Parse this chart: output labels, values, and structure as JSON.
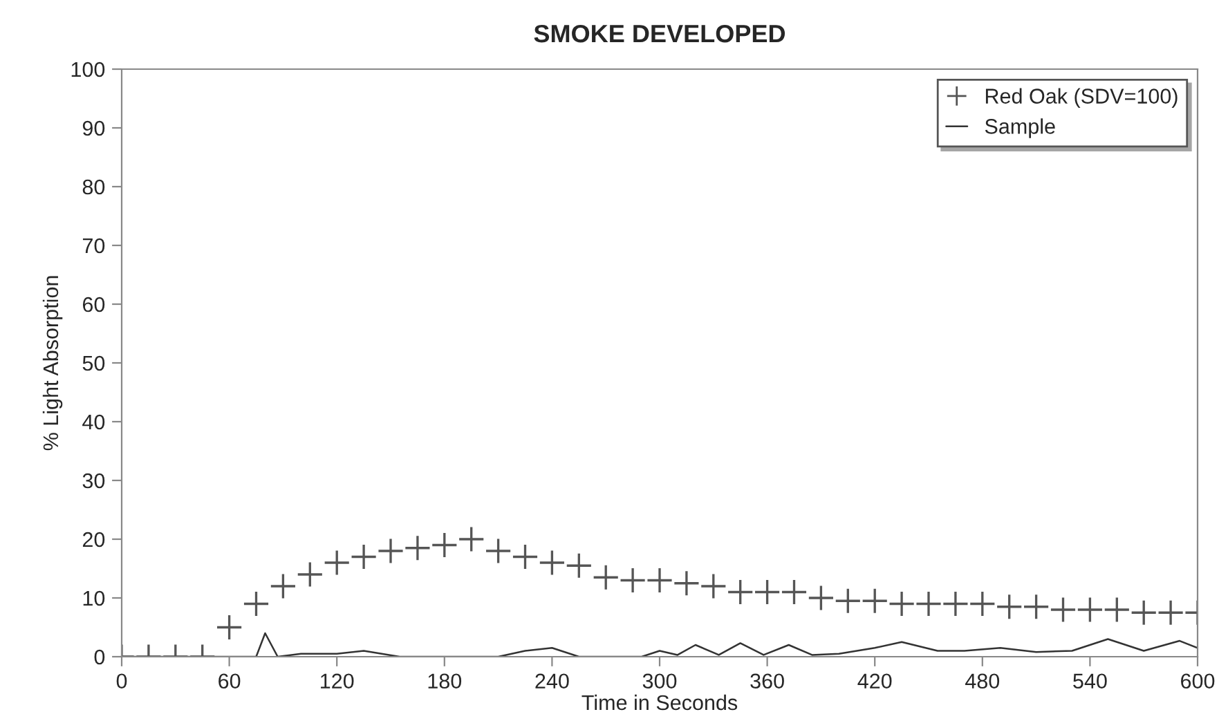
{
  "chart_data": {
    "type": "line",
    "title": "SMOKE DEVELOPED",
    "xlabel": "Time in Seconds",
    "ylabel": "% Light Absorption",
    "xlim": [
      0,
      600
    ],
    "xticks": [
      0,
      60,
      120,
      180,
      240,
      300,
      360,
      420,
      480,
      540,
      600
    ],
    "ylim": [
      0,
      100
    ],
    "yticks": [
      0,
      10,
      20,
      30,
      40,
      50,
      60,
      70,
      80,
      90,
      100
    ],
    "grid": false,
    "legend": "top right",
    "series": [
      {
        "name": "Red Oak (SDV=100)",
        "color": "#555555",
        "type": "scatter",
        "marker": "cross",
        "x": [
          0,
          15,
          30,
          45,
          60,
          75,
          90,
          105,
          120,
          135,
          150,
          165,
          180,
          195,
          210,
          225,
          240,
          255,
          270,
          285,
          300,
          315,
          330,
          345,
          360,
          375,
          390,
          405,
          420,
          435,
          450,
          465,
          480,
          495,
          510,
          525,
          540,
          555,
          570,
          585,
          600
        ],
        "values": [
          0,
          0,
          0,
          0,
          5,
          9,
          12,
          14,
          16,
          17,
          18,
          18.5,
          19,
          20,
          18,
          17,
          16,
          15.5,
          13.5,
          13,
          13,
          12.5,
          12,
          11,
          11,
          11,
          10,
          9.5,
          9.5,
          9,
          9,
          9,
          9,
          8.5,
          8.5,
          8,
          8,
          8,
          7.5,
          7.5,
          7.5
        ]
      },
      {
        "name": "Sample",
        "color": "#333333",
        "marker": "none",
        "line_style": "solid",
        "x": [
          0,
          75,
          80,
          87,
          100,
          120,
          135,
          155,
          210,
          225,
          240,
          255,
          290,
          300,
          310,
          320,
          333,
          345,
          358,
          372,
          385,
          400,
          420,
          435,
          455,
          470,
          490,
          510,
          530,
          550,
          570,
          590,
          600
        ],
        "values": [
          0,
          0,
          4,
          0,
          0.5,
          0.5,
          1,
          0,
          0,
          1,
          1.5,
          0,
          0,
          1,
          0.3,
          2,
          0.3,
          2.3,
          0.3,
          2,
          0.3,
          0.5,
          1.5,
          2.5,
          1,
          1,
          1.5,
          0.8,
          1,
          3,
          1,
          2.7,
          1.5
        ]
      }
    ]
  }
}
